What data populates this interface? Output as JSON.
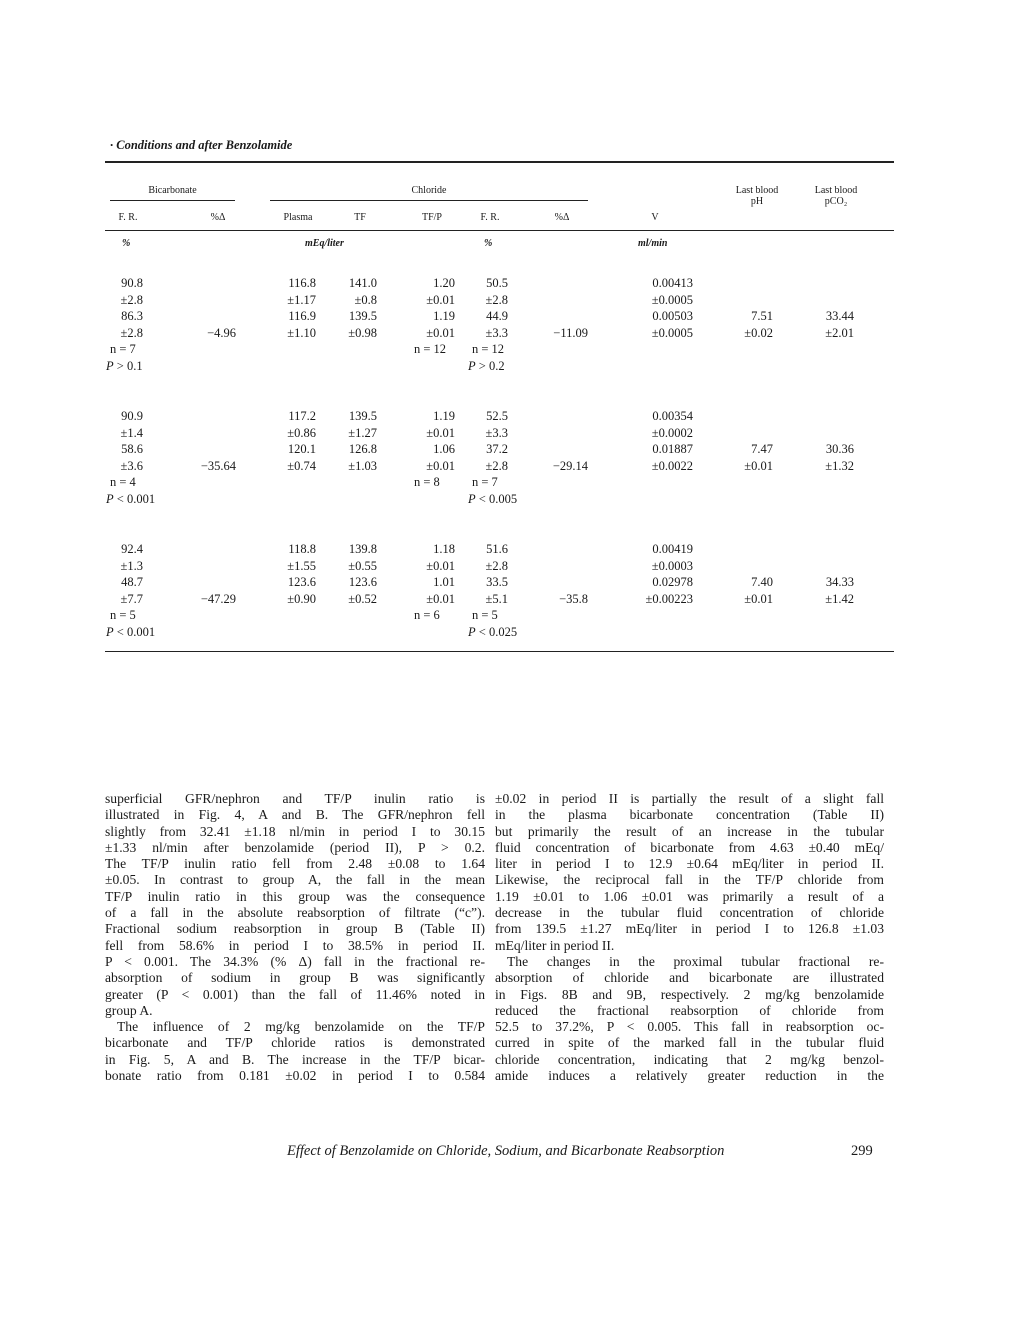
{
  "header": {
    "running_title": "· Conditions and after Benzolamide"
  },
  "table": {
    "group_headers": {
      "bicarbonate": "Bicarbonate",
      "chloride": "Chloride"
    },
    "columns": [
      "F. R.",
      "%Δ",
      "Plasma",
      "TF",
      "TF/P",
      "F. R.",
      "%Δ",
      "V",
      "Last blood pH",
      "Last blood pCO₂"
    ],
    "units": {
      "bicarb_fr": "%",
      "chloride_conc": "mEq/liter",
      "chloride_fr": "%",
      "v": "ml/min"
    },
    "groups": [
      [
        [
          "90.8",
          "",
          "116.8",
          "141.0",
          "1.20",
          "50.5",
          "",
          "0.00413",
          "",
          ""
        ],
        [
          "±2.8",
          "",
          "±1.17",
          "±0.8",
          "±0.01",
          "±2.8",
          "",
          "±0.0005",
          "",
          ""
        ],
        [
          "86.3",
          "",
          "116.9",
          "139.5",
          "1.19",
          "44.9",
          "",
          "0.00503",
          "7.51",
          "33.44"
        ],
        [
          "±2.8",
          "−4.96",
          "±1.10",
          "±0.98",
          "±0.01",
          "±3.3",
          "−11.09",
          "±0.0005",
          "±0.02",
          "±2.01"
        ],
        [
          "n = 7",
          "",
          "",
          "",
          "n = 12",
          "n = 12",
          "",
          "",
          "",
          ""
        ],
        [
          "P > 0.1",
          "",
          "",
          "",
          "",
          "P > 0.2",
          "",
          "",
          "",
          ""
        ]
      ],
      [
        [
          "90.9",
          "",
          "117.2",
          "139.5",
          "1.19",
          "52.5",
          "",
          "0.00354",
          "",
          ""
        ],
        [
          "±1.4",
          "",
          "±0.86",
          "±1.27",
          "±0.01",
          "±3.3",
          "",
          "±0.0002",
          "",
          ""
        ],
        [
          "58.6",
          "",
          "120.1",
          "126.8",
          "1.06",
          "37.2",
          "",
          "0.01887",
          "7.47",
          "30.36"
        ],
        [
          "±3.6",
          "−35.64",
          "±0.74",
          "±1.03",
          "±0.01",
          "±2.8",
          "−29.14",
          "±0.0022",
          "±0.01",
          "±1.32"
        ],
        [
          "n = 4",
          "",
          "",
          "",
          "n = 8",
          "n = 7",
          "",
          "",
          "",
          ""
        ],
        [
          "P < 0.001",
          "",
          "",
          "",
          "",
          "P < 0.005",
          "",
          "",
          "",
          ""
        ]
      ],
      [
        [
          "92.4",
          "",
          "118.8",
          "139.8",
          "1.18",
          "51.6",
          "",
          "0.00419",
          "",
          ""
        ],
        [
          "±1.3",
          "",
          "±1.55",
          "±0.55",
          "±0.01",
          "±2.8",
          "",
          "±0.0003",
          "",
          ""
        ],
        [
          "48.7",
          "",
          "123.6",
          "123.6",
          "1.01",
          "33.5",
          "",
          "0.02978",
          "7.40",
          "34.33"
        ],
        [
          "±7.7",
          "−47.29",
          "±0.90",
          "±0.52",
          "±0.01",
          "±5.1",
          "−35.8",
          "±0.00223",
          "±0.01",
          "±1.42"
        ],
        [
          "n = 5",
          "",
          "",
          "",
          "n = 6",
          "n = 5",
          "",
          "",
          "",
          ""
        ],
        [
          "P < 0.001",
          "",
          "",
          "",
          "",
          "P < 0.025",
          "",
          "",
          "",
          ""
        ]
      ]
    ]
  },
  "body": {
    "left_column": [
      {
        "lines": [
          "superficial GFR/nephron and TF/P inulin ratio is",
          "illustrated in Fig. 4, A and B. The GFR/nephron fell",
          "slightly from 32.41 ±1.18 nl/min in period I to 30.15",
          "±1.33 nl/min after benzolamide (period II), P > 0.2.",
          "The TF/P inulin ratio fell from 2.48 ±0.08 to 1.64",
          "±0.05. In contrast to group A, the fall in the mean",
          "TF/P inulin ratio in this group was the consequence",
          "of a fall in the absolute reabsorption of filtrate (“c”).",
          "Fractional sodium reabsorption in group B (Table II)",
          "fell from 58.6% in period I to 38.5% in period II.",
          "P < 0.001. The 34.3% (% Δ) fall in the fractional re-",
          "absorption of sodium in group B was significantly",
          "greater (P < 0.001) than the fall of 11.46% noted in",
          "group A."
        ]
      },
      {
        "lines": [
          "The influence of 2 mg/kg benzolamide on the TF/P",
          "bicarbonate and TF/P chloride ratios is demonstrated",
          "in Fig. 5, A and B. The increase in the TF/P bicar-",
          "bonate ratio from 0.181 ±0.02 in period I to 0.584"
        ]
      }
    ],
    "right_column": [
      {
        "lines": [
          "±0.02 in period II is partially the result of a slight fall",
          "in the plasma bicarbonate concentration (Table II)",
          "but primarily the result of an increase in the tubular",
          "fluid concentration of bicarbonate from 4.63 ±0.40 mEq/",
          "liter in period I to 12.9 ±0.64 mEq/liter in period II.",
          "Likewise, the reciprocal fall in the TF/P chloride from",
          "1.19 ±0.01 to 1.06 ±0.01 was primarily a result of a",
          "decrease in the tubular fluid concentration of chloride",
          "from 139.5 ±1.27 mEq/liter in period I to 126.8 ±1.03",
          "mEq/liter in period II."
        ]
      },
      {
        "lines": [
          "The changes in the proximal tubular fractional re-",
          "absorption of chloride and bicarbonate are illustrated",
          "in Figs. 8B and 9B, respectively. 2 mg/kg benzolamide",
          "reduced the fractional reabsorption of chloride from",
          "52.5 to 37.2%, P < 0.005. This fall in reabsorption oc-",
          "curred in spite of the marked fall in the tubular fluid",
          "chloride concentration, indicating that 2 mg/kg benzol-",
          "amide induces a relatively greater reduction in the"
        ]
      }
    ]
  },
  "footer": {
    "running_title": "Effect of Benzolamide on Chloride, Sodium, and Bicarbonate Reabsorption",
    "page_number": "299"
  }
}
